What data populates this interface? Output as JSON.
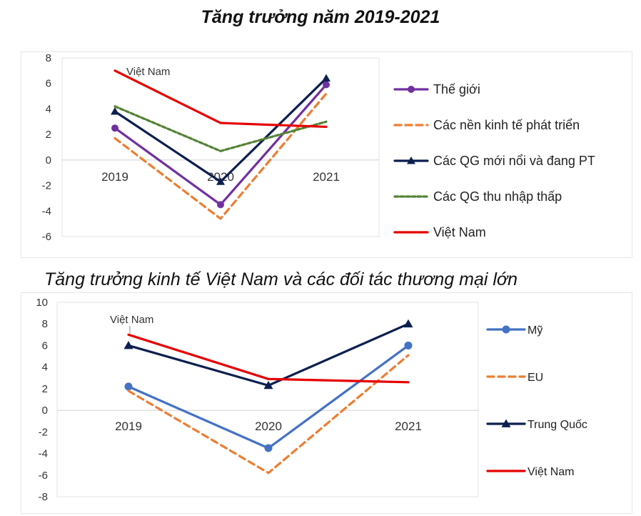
{
  "chart_data": [
    {
      "type": "line",
      "title": "Tăng trưởng năm 2019-2021",
      "categories": [
        "2019",
        "2020",
        "2021"
      ],
      "ylim": [
        -6,
        8
      ],
      "yticks": [
        "8",
        "6",
        "4",
        "2",
        "0",
        "-2",
        "-4",
        "-6"
      ],
      "grid": false,
      "legend_position": "right",
      "annotation": "Việt Nam",
      "series": [
        {
          "name": "Thế giới",
          "values": [
            2.5,
            -3.5,
            5.9
          ],
          "color": "#7030A0",
          "dash": "solid",
          "marker": "circle"
        },
        {
          "name": "Các nền kinh tế phát triển",
          "values": [
            1.7,
            -4.6,
            5.2
          ],
          "color": "#ED7D31",
          "dash": "dashed",
          "marker": "none"
        },
        {
          "name": "Các QG mới nổi và đang PT",
          "values": [
            3.8,
            -1.7,
            6.4
          ],
          "color": "#0D1F4F",
          "dash": "solid",
          "marker": "triangle"
        },
        {
          "name": "Các QG thu nhập thấp",
          "values": [
            4.2,
            0.7,
            3.0
          ],
          "color": "#548235",
          "dash": "dotted",
          "marker": "none"
        },
        {
          "name": "Việt Nam",
          "values": [
            7.0,
            2.9,
            2.6
          ],
          "color": "#E60000",
          "dash": "solid",
          "marker": "none"
        }
      ]
    },
    {
      "type": "line",
      "title": "Tăng trưởng kinh tế Việt Nam và các đối tác thương mại lớn",
      "categories": [
        "2019",
        "2020",
        "2021"
      ],
      "ylim": [
        -8,
        10
      ],
      "yticks": [
        "10",
        "8",
        "6",
        "4",
        "2",
        "0",
        "-2",
        "-4",
        "-6",
        "-8"
      ],
      "grid": false,
      "legend_position": "right",
      "annotation": "Việt Nam",
      "series": [
        {
          "name": "Mỹ",
          "values": [
            2.2,
            -3.5,
            6.0
          ],
          "color": "#4472C4",
          "dash": "solid",
          "marker": "circle"
        },
        {
          "name": "EU",
          "values": [
            1.8,
            -5.8,
            5.1
          ],
          "color": "#ED7D31",
          "dash": "dashed",
          "marker": "none"
        },
        {
          "name": "Trung Quốc",
          "values": [
            6.0,
            2.3,
            8.0
          ],
          "color": "#0D1F4F",
          "dash": "solid",
          "marker": "triangle"
        },
        {
          "name": "Việt Nam",
          "values": [
            7.0,
            2.9,
            2.6
          ],
          "color": "#E60000",
          "dash": "solid",
          "marker": "none"
        }
      ]
    }
  ]
}
